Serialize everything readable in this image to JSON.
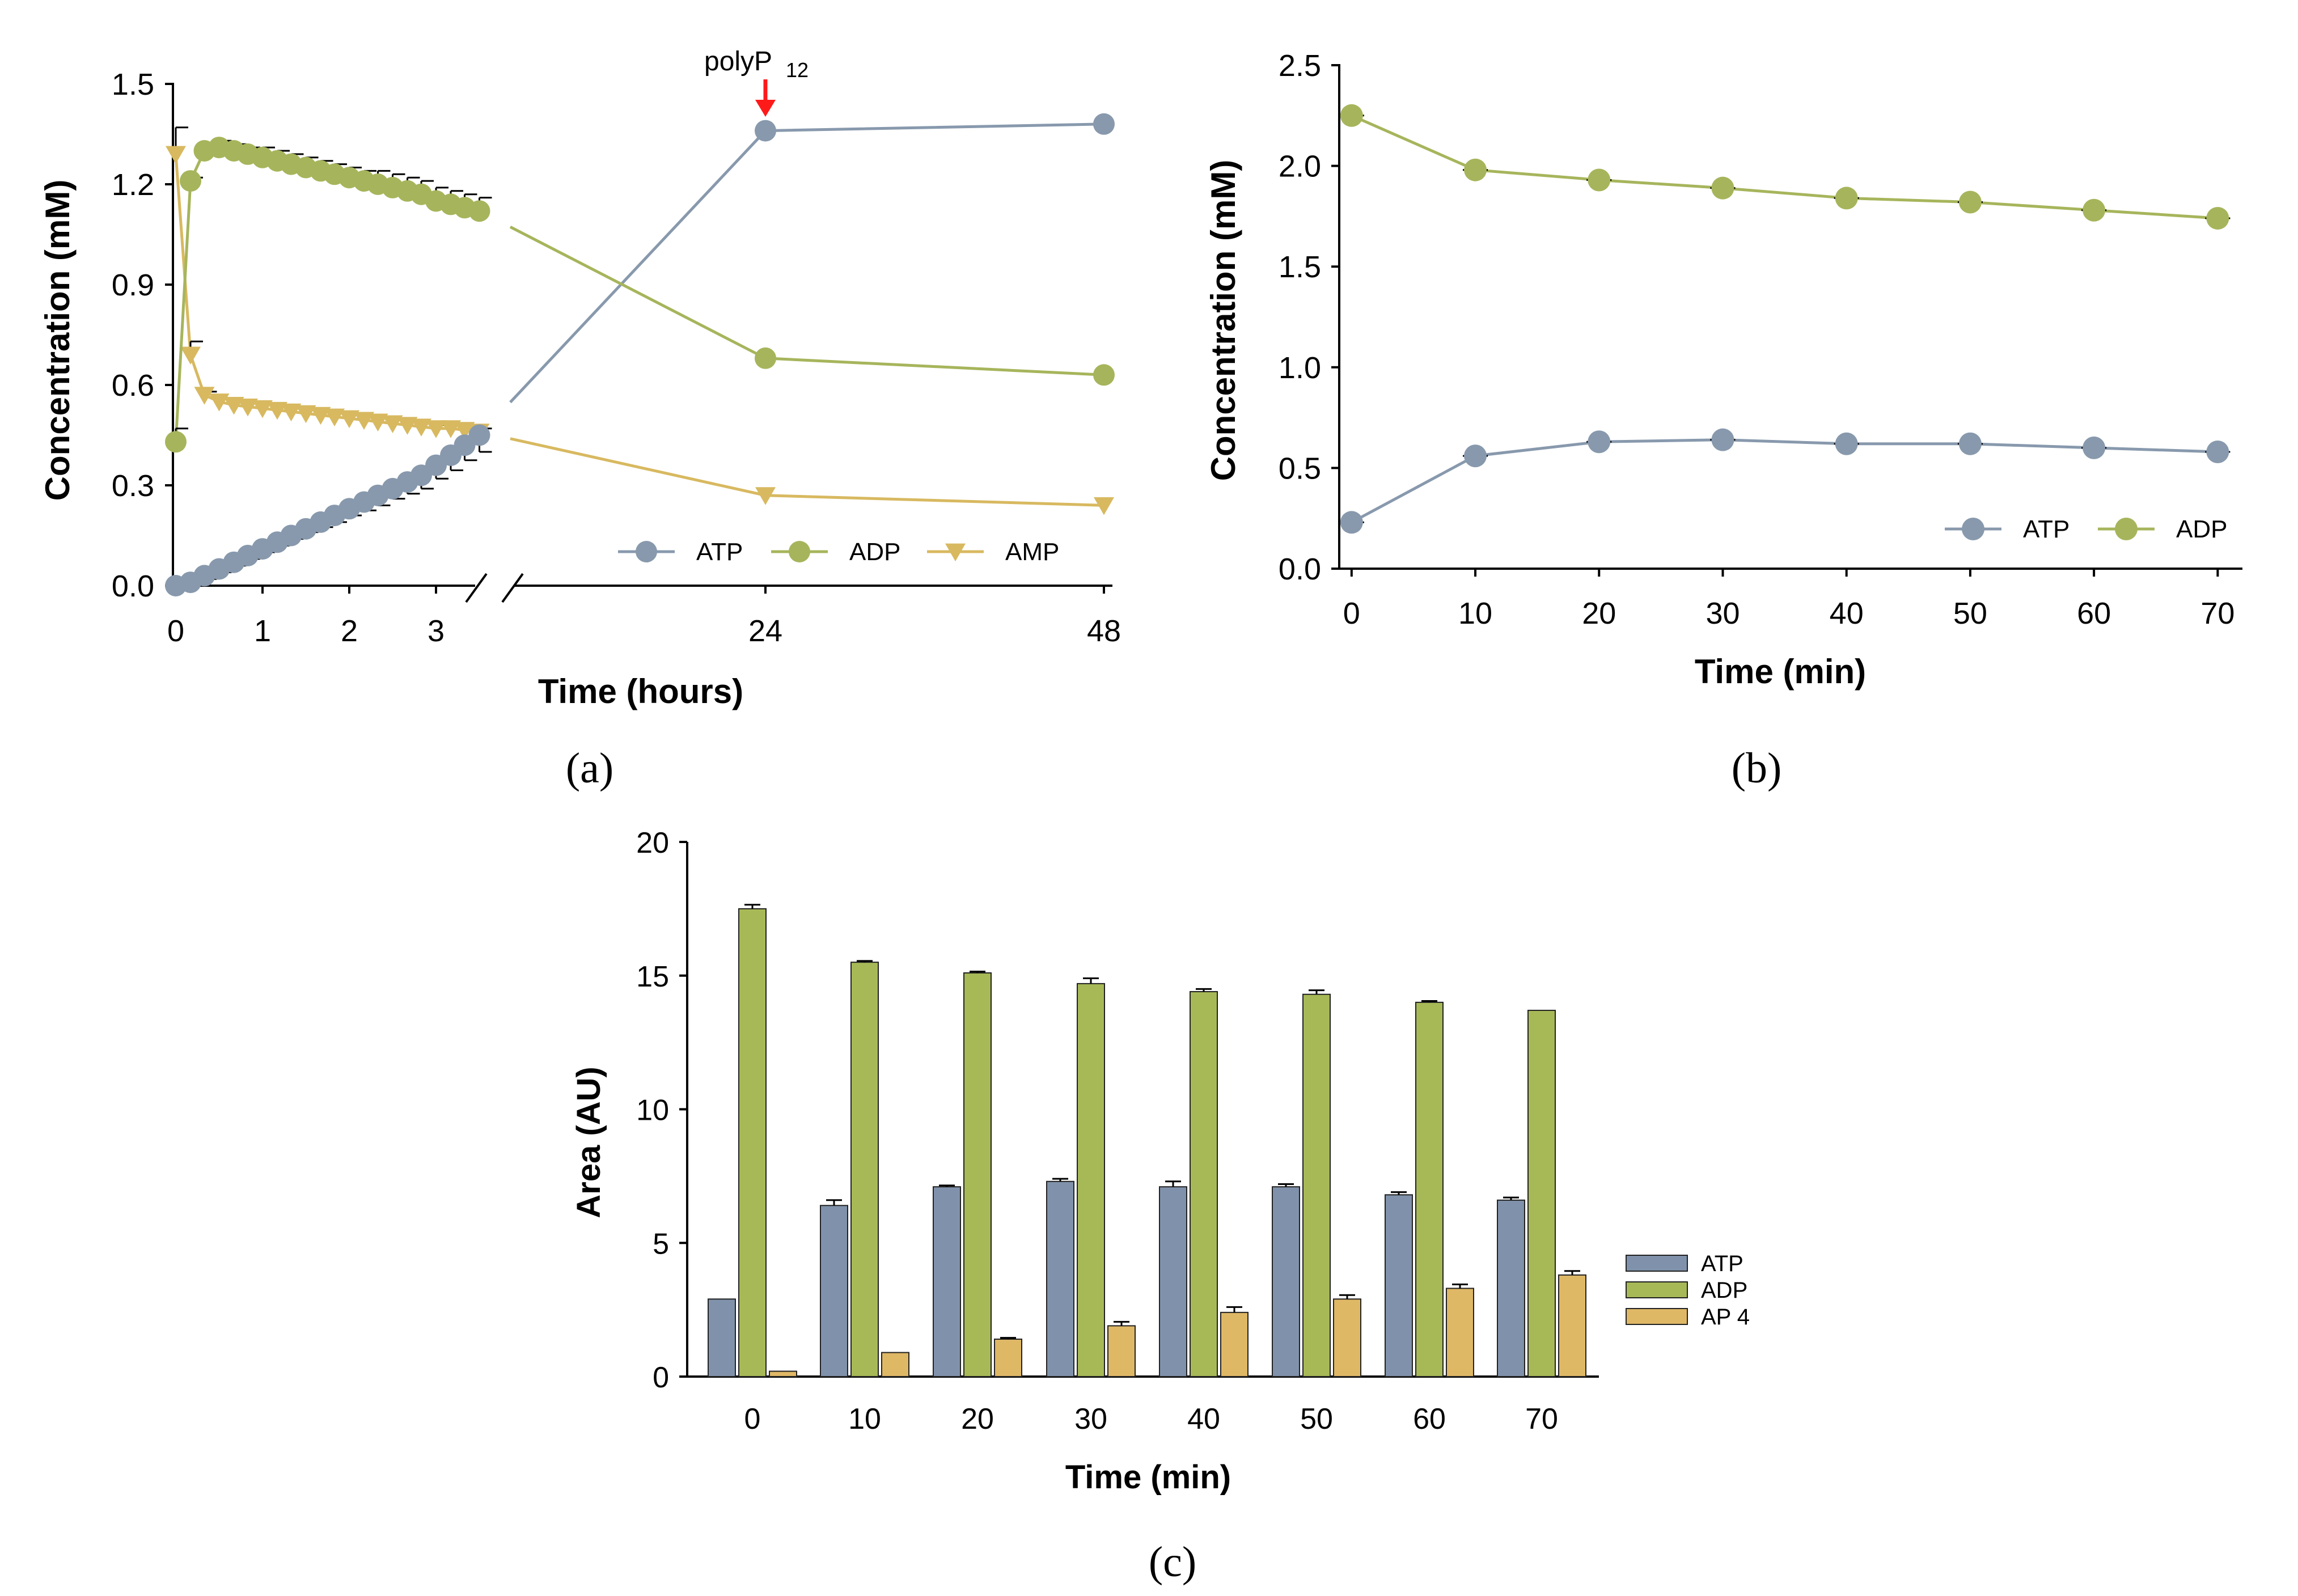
{
  "colors": {
    "atp": "#8899ad",
    "adp": "#a6b55b",
    "amp": "#d8b960",
    "atp_bar": "#8092ab",
    "adp_bar": "#a7b957",
    "ap4_bar": "#dfb866",
    "arrow": "#ff1a1a",
    "axis": "#000000"
  },
  "chart_data": [
    {
      "panel": "a",
      "panel_label": "(a)",
      "type": "line",
      "xlabel": "Time (hours)",
      "ylabel": "Concentration (mM)",
      "ylim": [
        0,
        1.5
      ],
      "yticks": [
        "0.0",
        "0.3",
        "0.6",
        "0.9",
        "1.2",
        "1.5"
      ],
      "xticks_left": [
        "0",
        "1",
        "2",
        "3"
      ],
      "xticks_right": [
        "24",
        "48"
      ],
      "broken_x_axis": true,
      "annotation": {
        "text": "polyP",
        "subscript": "12",
        "at_x": 24
      },
      "legend": [
        "ATP",
        "ADP",
        "AMP"
      ],
      "series": [
        {
          "name": "ATP",
          "x": [
            0,
            0.17,
            0.33,
            0.5,
            0.67,
            0.83,
            1,
            1.17,
            1.33,
            1.5,
            1.67,
            1.83,
            2,
            2.17,
            2.33,
            2.5,
            2.67,
            2.83,
            3,
            3.17,
            3.33,
            3.5,
            24,
            48
          ],
          "y": [
            0.0,
            0.01,
            0.03,
            0.05,
            0.07,
            0.09,
            0.11,
            0.13,
            0.15,
            0.17,
            0.19,
            0.21,
            0.23,
            0.25,
            0.27,
            0.29,
            0.31,
            0.33,
            0.36,
            0.39,
            0.42,
            0.45,
            1.36,
            1.38
          ],
          "err": [
            0,
            0.005,
            0.01,
            0.01,
            0.01,
            0.01,
            0.01,
            0.01,
            0.01,
            0.01,
            0.015,
            0.02,
            0.02,
            0.025,
            0.03,
            0.03,
            0.035,
            0.04,
            0.04,
            0.045,
            0.045,
            0.05,
            0,
            0
          ]
        },
        {
          "name": "ADP",
          "x": [
            0,
            0.17,
            0.33,
            0.5,
            0.67,
            0.83,
            1,
            1.17,
            1.33,
            1.5,
            1.67,
            1.83,
            2,
            2.17,
            2.33,
            2.5,
            2.67,
            2.83,
            3,
            3.17,
            3.33,
            3.5,
            24,
            48
          ],
          "y": [
            0.43,
            1.21,
            1.3,
            1.31,
            1.3,
            1.29,
            1.28,
            1.27,
            1.26,
            1.25,
            1.24,
            1.23,
            1.22,
            1.21,
            1.2,
            1.19,
            1.18,
            1.17,
            1.15,
            1.14,
            1.13,
            1.12,
            0.68,
            0.63
          ],
          "err": [
            0.04,
            0.01,
            0.01,
            0.02,
            0.02,
            0.02,
            0.03,
            0.03,
            0.03,
            0.03,
            0.03,
            0.03,
            0.03,
            0.03,
            0.04,
            0.04,
            0.04,
            0.04,
            0.04,
            0.04,
            0.04,
            0.04,
            0,
            0
          ]
        },
        {
          "name": "AMP",
          "x": [
            0,
            0.17,
            0.33,
            0.5,
            0.67,
            0.83,
            1,
            1.17,
            1.33,
            1.5,
            1.67,
            1.83,
            2,
            2.17,
            2.33,
            2.5,
            2.67,
            2.83,
            3,
            3.17,
            3.33,
            3.5,
            24,
            48
          ],
          "y": [
            1.29,
            0.69,
            0.57,
            0.55,
            0.54,
            0.535,
            0.53,
            0.525,
            0.52,
            0.515,
            0.51,
            0.505,
            0.5,
            0.495,
            0.49,
            0.485,
            0.48,
            0.475,
            0.47,
            0.47,
            0.465,
            0.46,
            0.27,
            0.24
          ],
          "err": [
            0.08,
            0.04,
            0.01,
            0.01,
            0.01,
            0.01,
            0.01,
            0.01,
            0.01,
            0.01,
            0.01,
            0.01,
            0.01,
            0.01,
            0.01,
            0.01,
            0.01,
            0.01,
            0.01,
            0.01,
            0.01,
            0.01,
            0,
            0
          ]
        }
      ]
    },
    {
      "panel": "b",
      "panel_label": "(b)",
      "type": "line",
      "xlabel": "Time (min)",
      "ylabel": "Concentration (mM)",
      "xlim": [
        -1,
        72
      ],
      "ylim": [
        0,
        2.5
      ],
      "xticks": [
        "0",
        "10",
        "20",
        "30",
        "40",
        "50",
        "60",
        "70"
      ],
      "yticks": [
        "0.0",
        "0.5",
        "1.0",
        "1.5",
        "2.0",
        "2.5"
      ],
      "legend": [
        "ATP",
        "ADP"
      ],
      "series": [
        {
          "name": "ATP",
          "x": [
            0,
            10,
            20,
            30,
            40,
            50,
            60,
            70
          ],
          "y": [
            0.23,
            0.56,
            0.63,
            0.64,
            0.62,
            0.62,
            0.6,
            0.58
          ]
        },
        {
          "name": "ADP",
          "x": [
            0,
            10,
            20,
            30,
            40,
            50,
            60,
            70
          ],
          "y": [
            2.25,
            1.98,
            1.93,
            1.89,
            1.84,
            1.82,
            1.78,
            1.74
          ]
        }
      ]
    },
    {
      "panel": "c",
      "panel_label": "(c)",
      "type": "bar",
      "xlabel": "Time (min)",
      "ylabel": "Area (AU)",
      "ylim": [
        0,
        20
      ],
      "yticks": [
        "0",
        "5",
        "10",
        "15",
        "20"
      ],
      "categories": [
        "0",
        "10",
        "20",
        "30",
        "40",
        "50",
        "60",
        "70"
      ],
      "legend": [
        "ATP",
        "ADP",
        "AP 4"
      ],
      "series": [
        {
          "name": "ATP",
          "values": [
            2.9,
            6.4,
            7.1,
            7.3,
            7.1,
            7.1,
            6.8,
            6.6
          ],
          "err": [
            0,
            0.2,
            0.05,
            0.1,
            0.2,
            0.1,
            0.1,
            0.1
          ]
        },
        {
          "name": "ADP",
          "values": [
            17.5,
            15.5,
            15.1,
            14.7,
            14.4,
            14.3,
            14.0,
            13.7
          ],
          "err": [
            0.15,
            0.05,
            0.05,
            0.2,
            0.1,
            0.15,
            0.05,
            0
          ]
        },
        {
          "name": "AP 4",
          "values": [
            0.2,
            0.9,
            1.4,
            1.9,
            2.4,
            2.9,
            3.3,
            3.8
          ],
          "err": [
            0,
            0,
            0.05,
            0.15,
            0.2,
            0.15,
            0.15,
            0.15
          ]
        }
      ]
    }
  ]
}
